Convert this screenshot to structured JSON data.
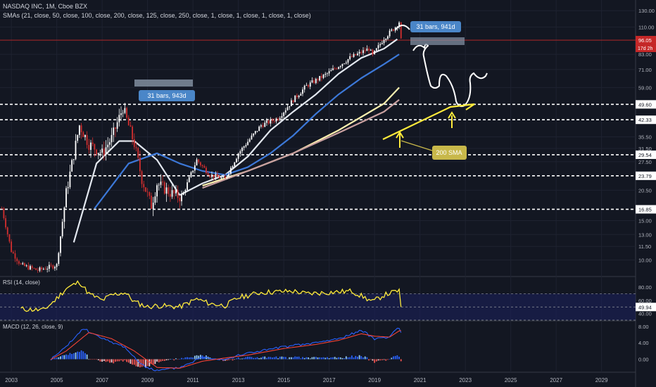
{
  "header": {
    "symbol": "NASDAQ INC, 1M, Cboe BZX",
    "smas": "SMAs (21, close, 50, close, 100, close, 200, close, 125, close, 250, close, 1, close, 1, close, 1, close, 1, close)"
  },
  "price_panel": {
    "axis_labels": [
      "130.00",
      "110.00",
      "96.05",
      "83.00",
      "71.00",
      "59.00",
      "49.60",
      "42.33",
      "35.50",
      "31.50",
      "29.54",
      "27.50",
      "23.79",
      "20.50",
      "16.85",
      "15.00",
      "13.00",
      "11.50",
      "10.00"
    ],
    "last_price": "96.05",
    "countdown": "17d 2h",
    "h_levels": [
      "49.60",
      "42.33",
      "29.54",
      "23.79",
      "16.85"
    ],
    "annotations": {
      "bars_label_1": "31 bars, 943d",
      "bars_label_2": "31 bars, 941d",
      "sma_label": "200 SMA"
    }
  },
  "rsi_panel": {
    "title": "RSI (14, close)",
    "axis_labels": [
      "80.00",
      "60.00",
      "40.00"
    ],
    "current": "49.94"
  },
  "macd_panel": {
    "title": "MACD (12, 26, close, 9)",
    "axis_labels": [
      "8.00",
      "4.00",
      "0.00"
    ]
  },
  "time_axis": [
    "2003",
    "2005",
    "2007",
    "2009",
    "2011",
    "2013",
    "2015",
    "2017",
    "2019",
    "2021",
    "2023",
    "2025",
    "2027",
    "2029"
  ],
  "colors": {
    "background": "#131722",
    "up": "#ffffff",
    "down": "#d32f2f",
    "sma_white": "#e3e8f0",
    "sma_blue": "#3c78d8",
    "sma_yellow": "#fff3b0",
    "sma_pink": "#c9a0a0",
    "rsi": "#ffeb3b",
    "macd": "#2962ff",
    "signal": "#f44336",
    "label_blue": "#4a86c8",
    "sma_label_bg": "#c8b84a"
  },
  "chart_data": [
    {
      "type": "candlestick",
      "title": "NASDAQ INC, 1M, Cboe BZX",
      "x_range": [
        "2002-06",
        "2030-06"
      ],
      "ylim": [
        8.5,
        140
      ],
      "y_scale": "log",
      "trend_points": [
        {
          "t": "2002-08",
          "v": 17
        },
        {
          "t": "2003-01",
          "v": 11
        },
        {
          "t": "2003-06",
          "v": 9.5
        },
        {
          "t": "2004-03",
          "v": 9
        },
        {
          "t": "2005-01",
          "v": 9.5
        },
        {
          "t": "2005-06",
          "v": 20
        },
        {
          "t": "2006-01",
          "v": 40
        },
        {
          "t": "2006-06",
          "v": 33
        },
        {
          "t": "2007-01",
          "v": 30
        },
        {
          "t": "2007-06",
          "v": 35
        },
        {
          "t": "2007-12",
          "v": 48
        },
        {
          "t": "2008-06",
          "v": 33
        },
        {
          "t": "2008-10",
          "v": 23
        },
        {
          "t": "2009-03",
          "v": 17.5
        },
        {
          "t": "2009-06",
          "v": 22
        },
        {
          "t": "2010-01",
          "v": 20
        },
        {
          "t": "2010-07",
          "v": 19
        },
        {
          "t": "2011-03",
          "v": 28
        },
        {
          "t": "2011-10",
          "v": 24
        },
        {
          "t": "2012-06",
          "v": 23
        },
        {
          "t": "2013-01",
          "v": 30
        },
        {
          "t": "2014-01",
          "v": 40
        },
        {
          "t": "2014-10",
          "v": 43
        },
        {
          "t": "2015-06",
          "v": 52
        },
        {
          "t": "2016-01",
          "v": 60
        },
        {
          "t": "2016-12",
          "v": 68
        },
        {
          "t": "2017-12",
          "v": 80
        },
        {
          "t": "2018-10",
          "v": 88
        },
        {
          "t": "2018-12",
          "v": 82
        },
        {
          "t": "2019-06",
          "v": 98
        },
        {
          "t": "2019-12",
          "v": 110
        },
        {
          "t": "2020-02",
          "v": 116
        },
        {
          "t": "2020-03",
          "v": 96
        }
      ],
      "sma_lines": [
        {
          "name": "white",
          "points": [
            {
              "t": "2005-10",
              "v": 12
            },
            {
              "t": "2006-10",
              "v": 27
            },
            {
              "t": "2007-10",
              "v": 34
            },
            {
              "t": "2008-06",
              "v": 34
            },
            {
              "t": "2009-06",
              "v": 28
            },
            {
              "t": "2010-06",
              "v": 19.5
            },
            {
              "t": "2011-06",
              "v": 22
            },
            {
              "t": "2012-06",
              "v": 24
            },
            {
              "t": "2013-06",
              "v": 29
            },
            {
              "t": "2014-06",
              "v": 38
            },
            {
              "t": "2015-06",
              "v": 46
            },
            {
              "t": "2016-06",
              "v": 55
            },
            {
              "t": "2017-06",
              "v": 68
            },
            {
              "t": "2018-06",
              "v": 80
            },
            {
              "t": "2019-06",
              "v": 88
            },
            {
              "t": "2020-01",
              "v": 97
            }
          ]
        },
        {
          "name": "blue",
          "points": [
            {
              "t": "2006-09",
              "v": 17
            },
            {
              "t": "2008-03",
              "v": 27
            },
            {
              "t": "2009-06",
              "v": 30
            },
            {
              "t": "2010-06",
              "v": 27
            },
            {
              "t": "2011-06",
              "v": 25
            },
            {
              "t": "2012-06",
              "v": 24
            },
            {
              "t": "2013-06",
              "v": 26
            },
            {
              "t": "2014-06",
              "v": 30
            },
            {
              "t": "2015-06",
              "v": 36
            },
            {
              "t": "2016-06",
              "v": 45
            },
            {
              "t": "2017-06",
              "v": 55
            },
            {
              "t": "2018-06",
              "v": 65
            },
            {
              "t": "2019-06",
              "v": 75
            },
            {
              "t": "2020-02",
              "v": 83
            }
          ]
        },
        {
          "name": "yellow",
          "points": [
            {
              "t": "2011-06",
              "v": 21.5
            },
            {
              "t": "2013-06",
              "v": 25
            },
            {
              "t": "2015-06",
              "v": 30
            },
            {
              "t": "2017-06",
              "v": 38
            },
            {
              "t": "2019-06",
              "v": 50
            },
            {
              "t": "2020-02",
              "v": 59
            }
          ]
        },
        {
          "name": "pink",
          "points": [
            {
              "t": "2011-06",
              "v": 21
            },
            {
              "t": "2013-06",
              "v": 25
            },
            {
              "t": "2015-06",
              "v": 30
            },
            {
              "t": "2017-06",
              "v": 37
            },
            {
              "t": "2019-06",
              "v": 46
            },
            {
              "t": "2020-02",
              "v": 52
            }
          ]
        }
      ]
    },
    {
      "type": "line",
      "title": "RSI (14, close)",
      "ylim": [
        30,
        95
      ],
      "series": [
        {
          "name": "RSI",
          "points": [
            {
              "t": "2003-06",
              "v": 47
            },
            {
              "t": "2004-06",
              "v": 45
            },
            {
              "t": "2004-12",
              "v": 60
            },
            {
              "t": "2005-06",
              "v": 78
            },
            {
              "t": "2006-01",
              "v": 88
            },
            {
              "t": "2006-06",
              "v": 70
            },
            {
              "t": "2007-01",
              "v": 60
            },
            {
              "t": "2007-06",
              "v": 68
            },
            {
              "t": "2008-01",
              "v": 72
            },
            {
              "t": "2008-06",
              "v": 58
            },
            {
              "t": "2009-01",
              "v": 50
            },
            {
              "t": "2009-06",
              "v": 52
            },
            {
              "t": "2010-06",
              "v": 50
            },
            {
              "t": "2011-03",
              "v": 62
            },
            {
              "t": "2011-10",
              "v": 55
            },
            {
              "t": "2012-06",
              "v": 52
            },
            {
              "t": "2013-01",
              "v": 64
            },
            {
              "t": "2014-01",
              "v": 72
            },
            {
              "t": "2015-06",
              "v": 74
            },
            {
              "t": "2016-01",
              "v": 70
            },
            {
              "t": "2017-01",
              "v": 72
            },
            {
              "t": "2018-01",
              "v": 74
            },
            {
              "t": "2018-12",
              "v": 58
            },
            {
              "t": "2019-06",
              "v": 68
            },
            {
              "t": "2020-02",
              "v": 75
            },
            {
              "t": "2020-03",
              "v": 49.94
            }
          ]
        }
      ]
    },
    {
      "type": "line",
      "title": "MACD (12, 26, close, 9)",
      "ylim": [
        -3,
        9
      ],
      "series": [
        {
          "name": "MACD",
          "points": [
            {
              "t": "2004-10",
              "v": 0
            },
            {
              "t": "2005-06",
              "v": 3
            },
            {
              "t": "2006-03",
              "v": 7.5
            },
            {
              "t": "2007-01",
              "v": 5
            },
            {
              "t": "2008-01",
              "v": 3
            },
            {
              "t": "2008-10",
              "v": -1.5
            },
            {
              "t": "2009-06",
              "v": -2.8
            },
            {
              "t": "2010-06",
              "v": -2
            },
            {
              "t": "2011-06",
              "v": 0.5
            },
            {
              "t": "2012-06",
              "v": 0
            },
            {
              "t": "2013-06",
              "v": 1.5
            },
            {
              "t": "2015-01",
              "v": 3
            },
            {
              "t": "2016-06",
              "v": 4
            },
            {
              "t": "2017-06",
              "v": 5
            },
            {
              "t": "2018-06",
              "v": 7
            },
            {
              "t": "2019-01",
              "v": 5
            },
            {
              "t": "2019-09",
              "v": 5.5
            },
            {
              "t": "2020-02",
              "v": 7.8
            },
            {
              "t": "2020-03",
              "v": 6.8
            }
          ]
        },
        {
          "name": "Signal",
          "points": [
            {
              "t": "2004-10",
              "v": 0
            },
            {
              "t": "2005-06",
              "v": 2
            },
            {
              "t": "2006-06",
              "v": 6.5
            },
            {
              "t": "2007-06",
              "v": 5
            },
            {
              "t": "2008-06",
              "v": 2
            },
            {
              "t": "2009-06",
              "v": -2
            },
            {
              "t": "2010-06",
              "v": -2.2
            },
            {
              "t": "2011-06",
              "v": -0.5
            },
            {
              "t": "2012-06",
              "v": 0.3
            },
            {
              "t": "2013-06",
              "v": 1
            },
            {
              "t": "2015-01",
              "v": 2.6
            },
            {
              "t": "2016-06",
              "v": 3.6
            },
            {
              "t": "2017-06",
              "v": 4.6
            },
            {
              "t": "2018-06",
              "v": 6.2
            },
            {
              "t": "2019-01",
              "v": 5.6
            },
            {
              "t": "2019-09",
              "v": 5.4
            },
            {
              "t": "2020-02",
              "v": 6.9
            },
            {
              "t": "2020-03",
              "v": 7
            }
          ]
        }
      ]
    }
  ]
}
